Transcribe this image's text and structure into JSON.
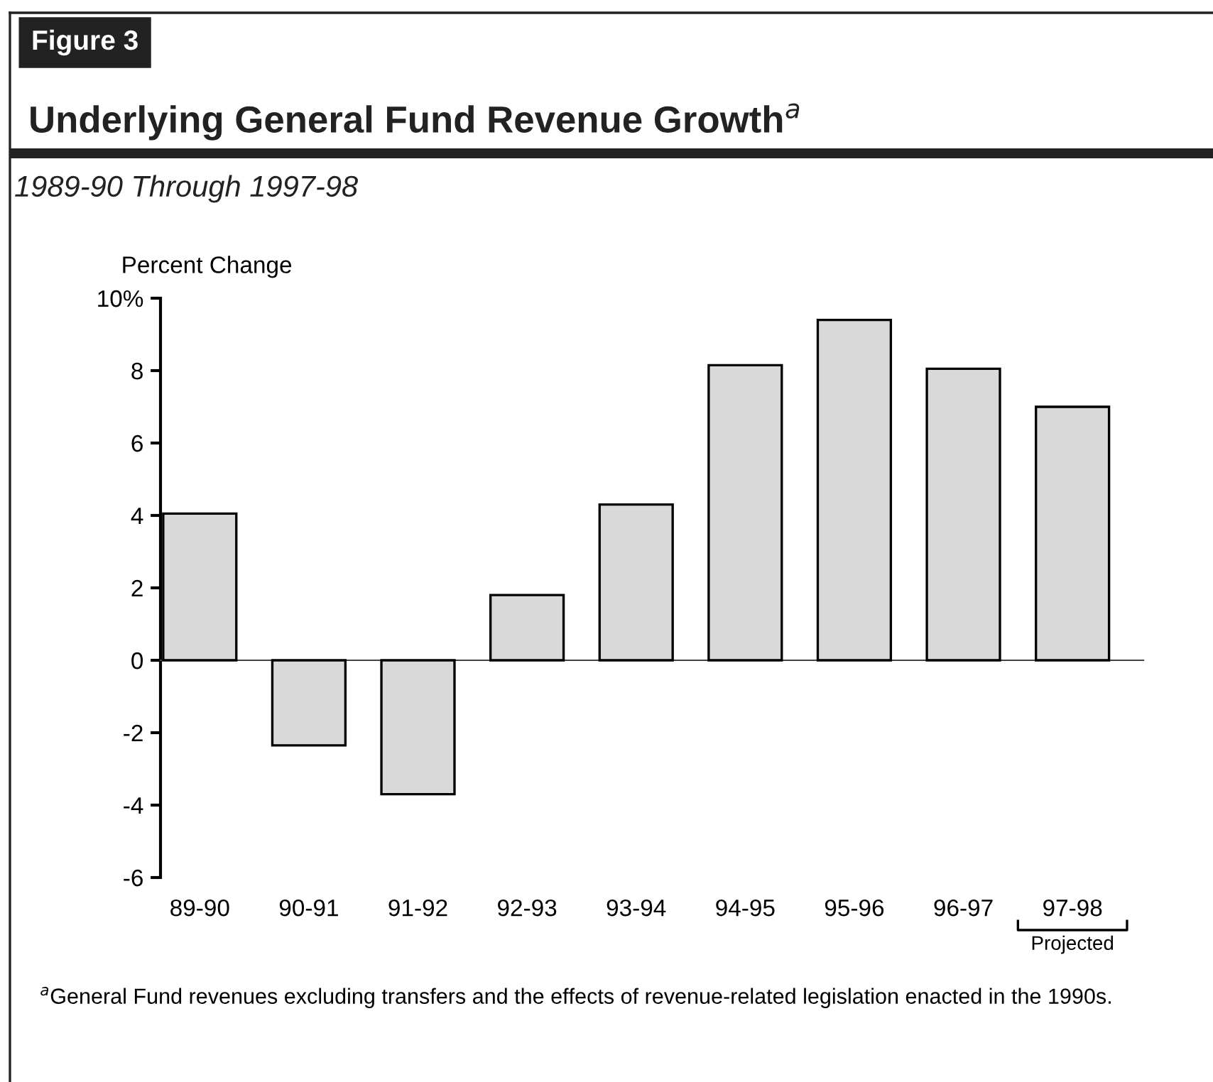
{
  "chart_data": {
    "type": "bar",
    "title": "Underlying General Fund Revenue Growth$^{a}$",
    "subtitle": "1989-90 Through 1997-98",
    "ylabel": "Percent Change",
    "categories": [
      "89-90",
      "90-91",
      "91-92",
      "92-93",
      "93-94",
      "94-95",
      "95-96",
      "96-97",
      "97-98"
    ],
    "values": [
      4.05,
      -2.35,
      -3.7,
      1.8,
      4.3,
      8.15,
      9.4,
      8.05,
      7.0
    ],
    "color": "#d9d9d9",
    "ylim": [
      -6,
      10
    ],
    "yticks": [
      {
        "value": 10,
        "label": "10%"
      },
      8,
      6,
      4,
      2,
      0,
      -2,
      -4,
      -6
    ],
    "annotations": [
      "Figure 3",
      "Projected",
      "$^{a}$General Fund revenues excluding transfers and the effects of revenue-related legislation enacted in the 1990s."
    ]
  }
}
